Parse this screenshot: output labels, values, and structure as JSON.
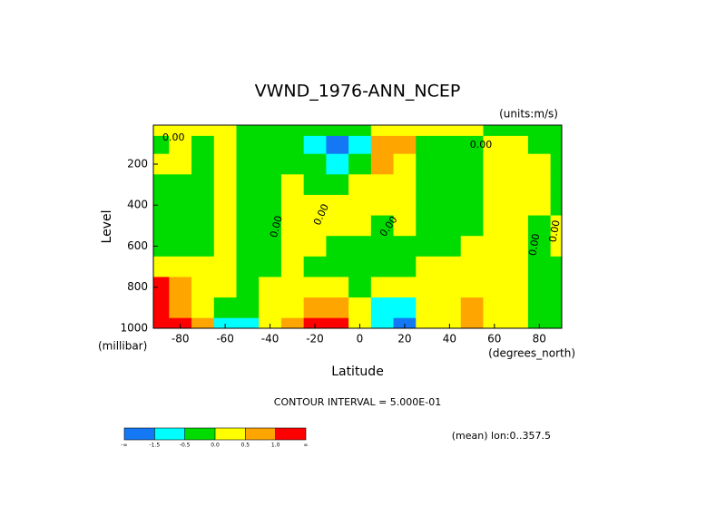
{
  "chart_data": {
    "type": "contour",
    "title": "VWND_1976-ANN_NCEP",
    "units_label": "(units:m/s)",
    "y_label": "Level",
    "y_units_label": "(millibar)",
    "x_label": "Latitude",
    "x_units_label": "(degrees_north)",
    "contour_note": "CONTOUR INTERVAL = 5.000E-01",
    "footnote": "(mean) lon:0..357.5",
    "xlim": [
      -92,
      90
    ],
    "ylim": [
      1000,
      10
    ],
    "xticks": [
      -80,
      -60,
      -40,
      -20,
      0,
      20,
      40,
      60,
      80
    ],
    "yticks": [
      200,
      400,
      600,
      800,
      1000
    ],
    "x": [
      -90,
      -80,
      -70,
      -60,
      -50,
      -40,
      -30,
      -20,
      -10,
      0,
      10,
      20,
      30,
      40,
      50,
      60,
      70,
      80,
      90
    ],
    "levels": [
      25,
      100,
      200,
      300,
      400,
      500,
      600,
      700,
      800,
      900,
      1000
    ],
    "z": [
      [
        0.3,
        -0.3,
        0.3,
        -0.3,
        -0.3,
        -0.3,
        -0.3,
        0.3,
        1.3,
        1.3,
        1.3
      ],
      [
        0.3,
        0.3,
        0.3,
        -0.3,
        -0.3,
        -0.3,
        -0.3,
        0.3,
        0.7,
        0.7,
        1.3
      ],
      [
        0.3,
        -0.3,
        -0.3,
        -0.3,
        -0.3,
        -0.3,
        -0.3,
        0.3,
        0.3,
        0.3,
        0.7
      ],
      [
        0.3,
        0.3,
        0.3,
        0.3,
        0.3,
        0.3,
        0.3,
        0.3,
        0.3,
        -0.3,
        -1
      ],
      [
        -0.3,
        -0.3,
        -0.3,
        -0.3,
        -0.3,
        -0.3,
        -0.3,
        -0.3,
        -0.3,
        -0.3,
        -1
      ],
      [
        -0.3,
        -0.3,
        -0.3,
        -0.3,
        -0.3,
        -0.3,
        -0.3,
        -0.3,
        0.3,
        0.3,
        0.3
      ],
      [
        -0.3,
        -0.3,
        -0.3,
        0.3,
        0.3,
        0.3,
        0.3,
        0.3,
        0.3,
        0.3,
        0.7
      ],
      [
        -0.3,
        -1,
        -0.3,
        -0.3,
        0.3,
        0.3,
        0.3,
        -0.3,
        0.3,
        0.7,
        1.3
      ],
      [
        -0.3,
        -2,
        -1,
        -0.3,
        0.3,
        0.3,
        -0.3,
        -0.3,
        0.3,
        0.7,
        1.3
      ],
      [
        -0.3,
        -1,
        -0.3,
        0.3,
        0.3,
        0.3,
        -0.3,
        -0.3,
        -0.3,
        0.3,
        0.3
      ],
      [
        0.3,
        0.7,
        0.7,
        0.3,
        0.3,
        -0.3,
        -0.3,
        -0.3,
        0.3,
        -1,
        -1
      ],
      [
        0.3,
        0.7,
        0.3,
        0.3,
        0.3,
        0.3,
        -0.3,
        -0.3,
        0.3,
        -1,
        -2
      ],
      [
        0.3,
        -0.3,
        -0.3,
        -0.3,
        -0.3,
        -0.3,
        -0.3,
        0.3,
        0.3,
        0.3,
        0.3
      ],
      [
        0.3,
        -0.3,
        -0.3,
        -0.3,
        -0.3,
        -0.3,
        -0.3,
        0.3,
        0.3,
        0.3,
        0.3
      ],
      [
        0.3,
        -0.3,
        -0.3,
        -0.3,
        -0.3,
        -0.3,
        0.3,
        0.3,
        0.3,
        0.7,
        0.7
      ],
      [
        -0.3,
        0.3,
        0.3,
        0.3,
        0.3,
        0.3,
        0.3,
        0.3,
        0.3,
        0.3,
        0.3
      ],
      [
        -0.3,
        0.3,
        0.3,
        0.3,
        0.3,
        0.3,
        0.3,
        0.3,
        0.3,
        0.3,
        0.3
      ],
      [
        -0.3,
        -0.3,
        0.3,
        0.3,
        0.3,
        -0.3,
        -0.3,
        -0.3,
        -0.3,
        -0.3,
        -0.3
      ],
      [
        -0.3,
        -0.3,
        -0.3,
        -0.3,
        -0.3,
        0.3,
        0.3,
        -0.3,
        -0.3,
        -0.3,
        -0.3
      ]
    ],
    "colorbar_levels": [
      -1.5,
      -0.5,
      {
        "value": 0,
        "label": "0.0"
      },
      0.5,
      {
        "value": 1,
        "label": "1.0"
      }
    ],
    "colorbar_end_labels": [
      "-∞",
      "∞"
    ],
    "colors": [
      "#1478f5",
      "#00ffff",
      "#00dc00",
      "#ffff00",
      "#ffa500",
      "#ff0000"
    ],
    "annotations": [
      {
        "text": "0.00",
        "x": -83,
        "y": 72
      },
      {
        "text": "0.00",
        "x": -37,
        "y": 505
      },
      {
        "text": "0.00",
        "x": -17,
        "y": 447
      },
      {
        "text": "0.00",
        "x": 13,
        "y": 505
      },
      {
        "text": "0.00",
        "x": 54,
        "y": 107
      },
      {
        "text": "0.00",
        "x": 78,
        "y": 593
      },
      {
        "text": "0.00",
        "x": 87,
        "y": 527
      }
    ]
  }
}
